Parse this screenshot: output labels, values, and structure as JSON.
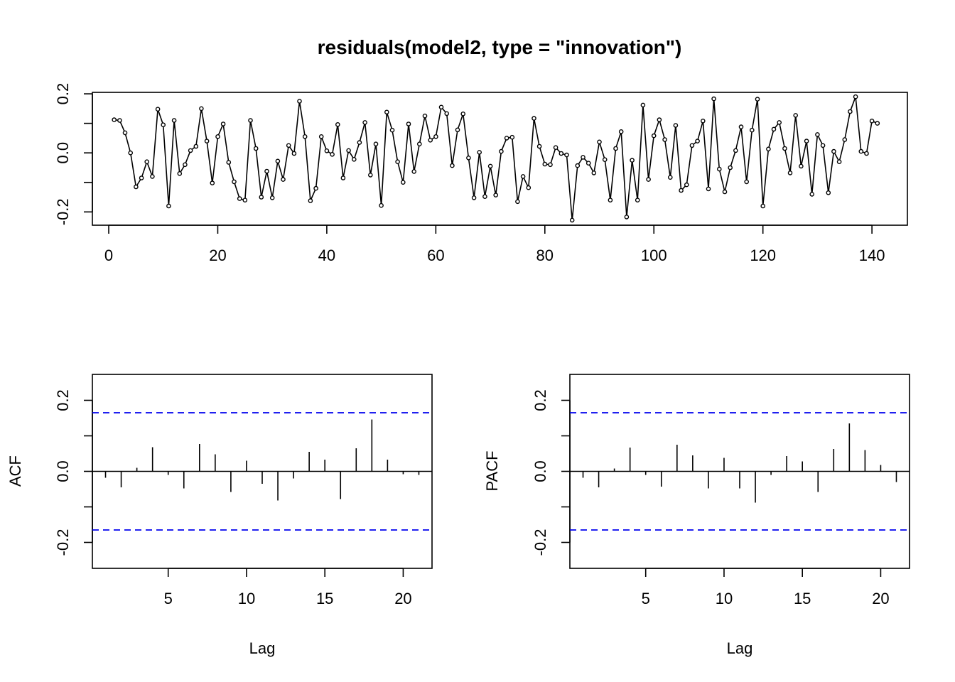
{
  "chart_data": [
    {
      "type": "line",
      "title": "residuals(model2, type = \"innovation\")",
      "xlabel": "",
      "ylabel": "",
      "xlim": [
        -3,
        146.5
      ],
      "ylim": [
        -0.245,
        0.205
      ],
      "x_ticks": [
        0,
        20,
        40,
        60,
        80,
        100,
        120,
        140
      ],
      "y_ticks": [
        -0.2,
        -0.1,
        0.0,
        0.1,
        0.2
      ],
      "y_tick_labels": [
        {
          "value": -0.2,
          "label": "-0.2"
        },
        {
          "value": 0.0,
          "label": "0.0"
        },
        {
          "value": 0.2,
          "label": "0.2"
        }
      ],
      "markers": "open-circle",
      "x_start": 1,
      "values": [
        0.112,
        0.11,
        0.068,
        0.0,
        -0.115,
        -0.085,
        -0.03,
        -0.08,
        0.148,
        0.095,
        -0.18,
        0.11,
        -0.07,
        -0.04,
        0.008,
        0.022,
        0.15,
        0.04,
        -0.102,
        0.055,
        0.098,
        -0.032,
        -0.098,
        -0.155,
        -0.16,
        0.11,
        0.015,
        -0.15,
        -0.062,
        -0.152,
        -0.028,
        -0.09,
        0.025,
        -0.002,
        0.175,
        0.055,
        -0.162,
        -0.12,
        0.055,
        0.007,
        -0.005,
        0.096,
        -0.085,
        0.008,
        -0.022,
        0.035,
        0.103,
        -0.075,
        0.03,
        -0.178,
        0.138,
        0.077,
        -0.03,
        -0.1,
        0.098,
        -0.063,
        0.03,
        0.125,
        0.043,
        0.055,
        0.155,
        0.133,
        -0.043,
        0.078,
        0.132,
        -0.017,
        -0.152,
        0.002,
        -0.148,
        -0.045,
        -0.143,
        0.005,
        0.05,
        0.053,
        -0.165,
        -0.08,
        -0.118,
        0.117,
        0.022,
        -0.038,
        -0.04,
        0.018,
        -0.002,
        -0.007,
        -0.228,
        -0.043,
        -0.015,
        -0.035,
        -0.068,
        0.037,
        -0.023,
        -0.16,
        0.015,
        0.072,
        -0.217,
        -0.025,
        -0.16,
        0.162,
        -0.09,
        0.058,
        0.112,
        0.045,
        -0.083,
        0.093,
        -0.127,
        -0.108,
        0.025,
        0.04,
        0.108,
        -0.122,
        0.183,
        -0.055,
        -0.132,
        -0.05,
        0.008,
        0.088,
        -0.098,
        0.077,
        0.182,
        -0.18,
        0.013,
        0.08,
        0.103,
        0.015,
        -0.068,
        0.127,
        -0.045,
        0.04,
        -0.14,
        0.062,
        0.025,
        -0.135,
        0.005,
        -0.03,
        0.045,
        0.14,
        0.19,
        0.005,
        -0.002,
        0.108,
        0.1
      ]
    },
    {
      "type": "bar",
      "xlabel": "Lag",
      "ylabel": "ACF",
      "xlim": [
        0.16,
        21.84
      ],
      "ylim": [
        -0.273,
        0.273
      ],
      "x_ticks": [
        5,
        10,
        15,
        20
      ],
      "y_ticks": [
        -0.2,
        -0.1,
        0.0,
        0.1,
        0.2
      ],
      "y_tick_labels": [
        {
          "value": -0.2,
          "label": "-0.2"
        },
        {
          "value": 0.0,
          "label": "0.0"
        },
        {
          "value": 0.2,
          "label": "0.2"
        }
      ],
      "confidence_bound": 0.165,
      "lags": [
        1,
        2,
        3,
        4,
        5,
        6,
        7,
        8,
        9,
        10,
        11,
        12,
        13,
        14,
        15,
        16,
        17,
        18,
        19,
        20,
        21
      ],
      "values": [
        -0.018,
        -0.045,
        0.01,
        0.068,
        -0.01,
        -0.048,
        0.077,
        0.048,
        -0.058,
        0.03,
        -0.035,
        -0.082,
        -0.02,
        0.055,
        0.033,
        -0.078,
        0.065,
        0.146,
        0.033,
        -0.008,
        -0.01
      ]
    },
    {
      "type": "bar",
      "xlabel": "Lag",
      "ylabel": "PACF",
      "xlim": [
        0.16,
        21.84
      ],
      "ylim": [
        -0.273,
        0.273
      ],
      "x_ticks": [
        5,
        10,
        15,
        20
      ],
      "y_ticks": [
        -0.2,
        -0.1,
        0.0,
        0.1,
        0.2
      ],
      "y_tick_labels": [
        {
          "value": -0.2,
          "label": "-0.2"
        },
        {
          "value": 0.0,
          "label": "0.0"
        },
        {
          "value": 0.2,
          "label": "0.2"
        }
      ],
      "confidence_bound": 0.165,
      "lags": [
        1,
        2,
        3,
        4,
        5,
        6,
        7,
        8,
        9,
        10,
        11,
        12,
        13,
        14,
        15,
        16,
        17,
        18,
        19,
        20,
        21
      ],
      "values": [
        -0.018,
        -0.045,
        0.008,
        0.067,
        -0.01,
        -0.043,
        0.075,
        0.045,
        -0.048,
        0.038,
        -0.048,
        -0.088,
        -0.01,
        0.043,
        0.028,
        -0.058,
        0.063,
        0.135,
        0.06,
        0.018,
        -0.03
      ]
    }
  ]
}
